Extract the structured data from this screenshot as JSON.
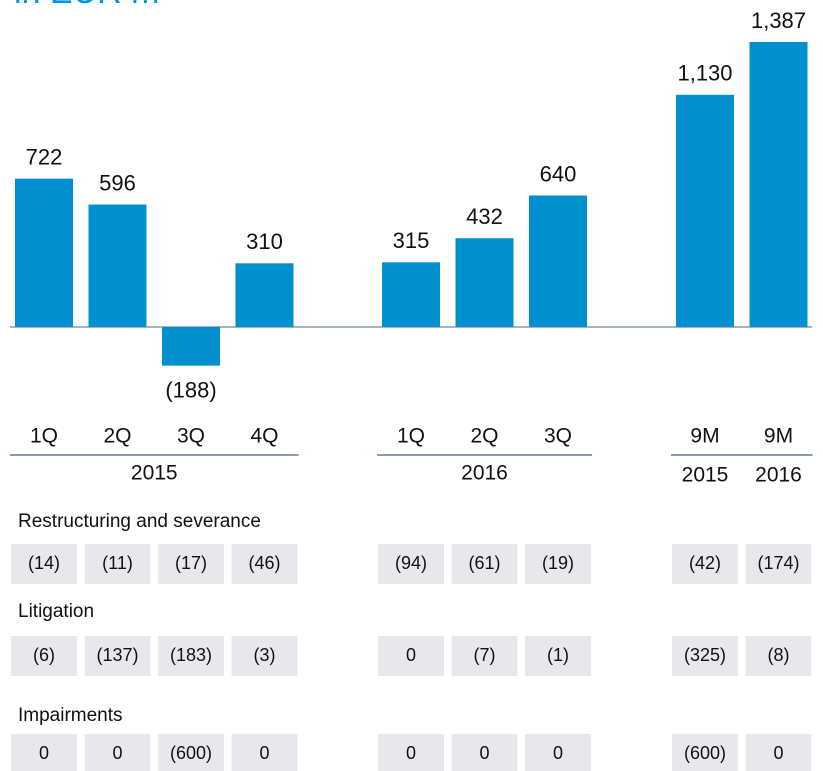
{
  "chart_data": {
    "type": "bar",
    "title": "in EUR m",
    "color": "#0090d0",
    "groups": [
      {
        "label": "2015",
        "categories": [
          "1Q",
          "2Q",
          "3Q",
          "4Q"
        ],
        "values": [
          722,
          596,
          -188,
          310
        ],
        "value_labels": [
          "722",
          "596",
          "(188)",
          "310"
        ]
      },
      {
        "label": "2016",
        "categories": [
          "1Q",
          "2Q",
          "3Q"
        ],
        "values": [
          315,
          432,
          640
        ],
        "value_labels": [
          "315",
          "432",
          "640"
        ]
      },
      {
        "categories": [
          "9M",
          "9M"
        ],
        "sublabels": [
          "2015",
          "2016"
        ],
        "values": [
          1130,
          1387
        ],
        "value_labels": [
          "1,130",
          "1,387"
        ]
      }
    ]
  },
  "table": {
    "rows": [
      {
        "name": "Restructuring and severance",
        "cells": [
          [
            "(14)",
            "(11)",
            "(17)",
            "(46)"
          ],
          [
            "(94)",
            "(61)",
            "(19)"
          ],
          [
            "(42)",
            "(174)"
          ]
        ]
      },
      {
        "name": "Litigation",
        "cells": [
          [
            "(6)",
            "(137)",
            "(183)",
            "(3)"
          ],
          [
            "0",
            "(7)",
            "(1)"
          ],
          [
            "(325)",
            "(8)"
          ]
        ]
      },
      {
        "name": "Impairments",
        "cells": [
          [
            "0",
            "0",
            "(600)",
            "0"
          ],
          [
            "0",
            "0",
            "0"
          ],
          [
            "(600)",
            "0"
          ]
        ]
      }
    ]
  }
}
